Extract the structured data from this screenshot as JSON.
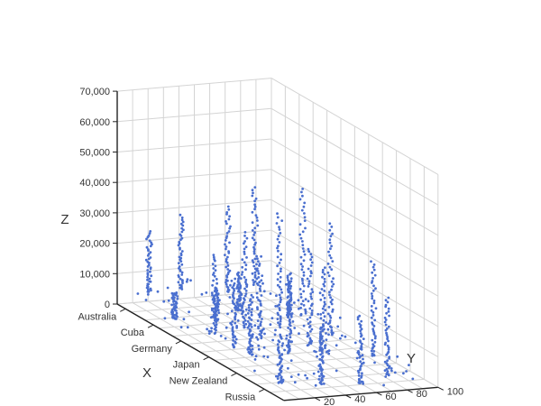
{
  "chart_data": {
    "type": "scatter",
    "title": "",
    "xlabel": "X",
    "ylabel": "Y",
    "zlabel": "Z",
    "x_categories": [
      "Australia",
      "Cuba",
      "Germany",
      "Japan",
      "New Zealand",
      "Russia"
    ],
    "y_ticks": [
      "20",
      "40",
      "60",
      "80",
      "100"
    ],
    "z_ticks": [
      "0",
      "10,000",
      "20,000",
      "30,000",
      "40,000",
      "50,000",
      "60,000",
      "70,000"
    ],
    "xlim": [
      0,
      6
    ],
    "ylim": [
      0,
      100
    ],
    "zlim": [
      0,
      70000
    ],
    "grid": true,
    "marker_color": "#4a6fcf",
    "series": [
      {
        "category": "Australia",
        "y_range": [
          5,
          95
        ],
        "z_range": [
          6000,
          42000
        ]
      },
      {
        "category": "Cuba",
        "y_range": [
          5,
          95
        ],
        "z_range": [
          2000,
          18000
        ]
      },
      {
        "category": "Germany",
        "y_range": [
          5,
          95
        ],
        "z_range": [
          5000,
          52000
        ]
      },
      {
        "category": "Japan",
        "y_range": [
          5,
          95
        ],
        "z_range": [
          4000,
          45000
        ]
      },
      {
        "category": "New Zealand",
        "y_range": [
          5,
          95
        ],
        "z_range": [
          5000,
          40000
        ]
      },
      {
        "category": "Russia",
        "y_range": [
          5,
          95
        ],
        "z_range": [
          1000,
          30000
        ]
      }
    ]
  }
}
